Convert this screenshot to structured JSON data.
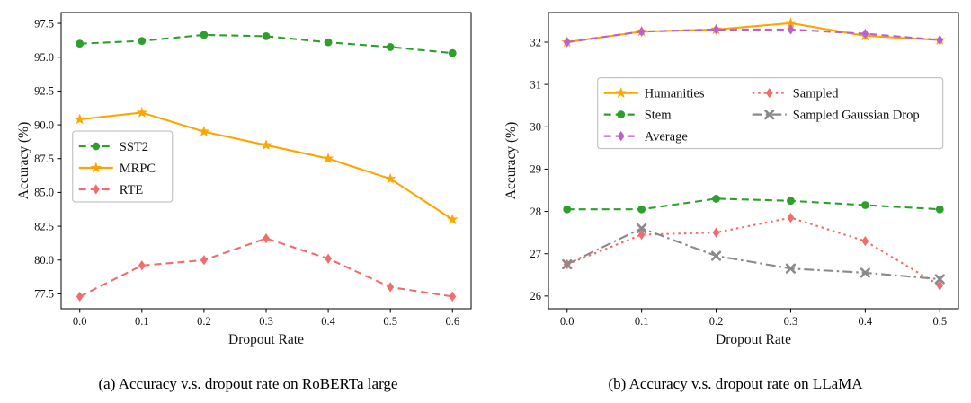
{
  "figure": {
    "caption_a": "(a)  Accuracy v.s. dropout rate on RoBERTa large",
    "caption_b": "(b)  Accuracy v.s. dropout rate on LLaMA"
  },
  "chart_data": [
    {
      "type": "line",
      "title": "",
      "xlabel": "Dropout Rate",
      "ylabel": "Accuracy (%)",
      "x": [
        0.0,
        0.1,
        0.2,
        0.3,
        0.4,
        0.5,
        0.6
      ],
      "xtick_labels": [
        "0.0",
        "0.1",
        "0.2",
        "0.3",
        "0.4",
        "0.5",
        "0.6"
      ],
      "ytick_labels": [
        "77.5",
        "80.0",
        "82.5",
        "85.0",
        "87.5",
        "90.0",
        "92.5",
        "95.0",
        "97.5"
      ],
      "xlim": [
        -0.03,
        0.63
      ],
      "ylim": [
        76.4,
        98.3
      ],
      "grid": false,
      "legend": {
        "position": "middle-left",
        "x": 0.028,
        "y": 0.4,
        "ncols": 1,
        "col_text_widths": [
          52
        ]
      },
      "series": [
        {
          "name": "SST2",
          "color": "#2ca02c",
          "dash": "dashed",
          "marker": "circle",
          "values": [
            96.0,
            96.2,
            96.65,
            96.55,
            96.1,
            95.75,
            95.3
          ]
        },
        {
          "name": "MRPC",
          "color": "#ffa500",
          "dash": "solid",
          "marker": "star",
          "values": [
            90.4,
            90.9,
            89.5,
            88.5,
            87.5,
            86.0,
            83.0
          ]
        },
        {
          "name": "RTE",
          "color": "#f26c6c",
          "dash": "dashed",
          "marker": "diamond",
          "values": [
            77.3,
            79.6,
            80.0,
            81.6,
            80.1,
            78.0,
            77.3
          ]
        }
      ]
    },
    {
      "type": "line",
      "title": "",
      "xlabel": "Dropout Rate",
      "ylabel": "Accuracy (%)",
      "x": [
        0.0,
        0.1,
        0.2,
        0.3,
        0.4,
        0.5
      ],
      "xtick_labels": [
        "0.0",
        "0.1",
        "0.2",
        "0.3",
        "0.4",
        "0.5"
      ],
      "ytick_labels": [
        "26",
        "27",
        "28",
        "29",
        "30",
        "31",
        "32"
      ],
      "xlim": [
        -0.025,
        0.525
      ],
      "ylim": [
        25.7,
        32.7
      ],
      "grid": false,
      "legend": {
        "position": "upper-center",
        "x": 0.12,
        "y": 0.22,
        "ncols": 2,
        "col_text_widths": [
          120,
          160
        ]
      },
      "series": [
        {
          "name": "Humanities",
          "color": "#ffa500",
          "dash": "solid",
          "marker": "star",
          "values": [
            32.0,
            32.25,
            32.3,
            32.45,
            32.15,
            32.05
          ]
        },
        {
          "name": "Stem",
          "color": "#2ca02c",
          "dash": "dashed",
          "marker": "circle",
          "values": [
            28.05,
            28.05,
            28.3,
            28.25,
            28.15,
            28.05
          ]
        },
        {
          "name": "Average",
          "color": "#bc5fd3",
          "dash": "dashed",
          "marker": "diamond",
          "values": [
            32.0,
            32.25,
            32.3,
            32.3,
            32.2,
            32.05
          ]
        },
        {
          "name": "Sampled",
          "color": "#f26c6c",
          "dash": "dotted",
          "marker": "diamond",
          "values": [
            26.75,
            27.45,
            27.5,
            27.85,
            27.3,
            26.25
          ]
        },
        {
          "name": "Sampled Gaussian Drop",
          "color": "#8a8a8a",
          "dash": "dashdot",
          "marker": "x",
          "values": [
            26.75,
            27.6,
            26.95,
            26.65,
            26.55,
            26.4
          ]
        }
      ]
    }
  ]
}
